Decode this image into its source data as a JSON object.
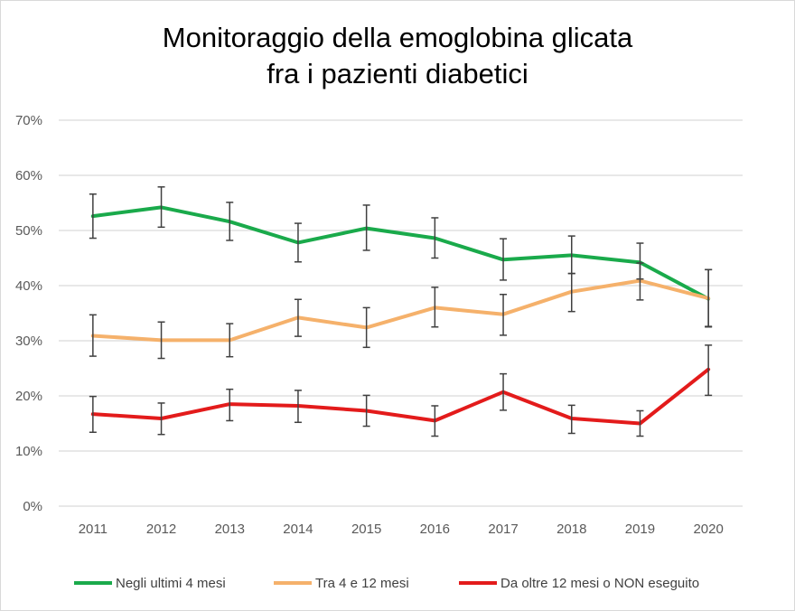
{
  "chart_data": {
    "type": "line",
    "title": "Monitoraggio della emoglobina glicata",
    "subtitle": "fra i pazienti diabetici",
    "categories": [
      "2011",
      "2012",
      "2013",
      "2014",
      "2015",
      "2016",
      "2017",
      "2018",
      "2019",
      "2020"
    ],
    "y_tick_labels": [
      "0%",
      "10%",
      "20%",
      "30%",
      "40%",
      "50%",
      "60%",
      "70%"
    ],
    "ylim": [
      0,
      70
    ],
    "grid": true,
    "legend_position": "bottom",
    "series": [
      {
        "name": "Negli ultimi 4 mesi",
        "color": "#1aaa4b",
        "values": [
          52.6,
          54.2,
          51.6,
          47.8,
          50.4,
          48.6,
          44.7,
          45.5,
          44.2,
          37.6
        ],
        "error_low": [
          48.6,
          50.6,
          48.2,
          44.3,
          46.4,
          45.0,
          41.0,
          42.2,
          41.2,
          32.6
        ],
        "error_high": [
          56.6,
          57.9,
          55.1,
          51.3,
          54.6,
          52.3,
          48.5,
          49.0,
          47.7,
          42.9
        ]
      },
      {
        "name": "Tra 4  e 12 mesi",
        "color": "#f5b16b",
        "values": [
          30.9,
          30.1,
          30.1,
          34.2,
          32.4,
          36.0,
          34.8,
          38.9,
          40.9,
          37.7
        ],
        "error_low": [
          27.2,
          26.8,
          27.1,
          30.8,
          28.8,
          32.5,
          31.0,
          35.3,
          37.4,
          32.5
        ],
        "error_high": [
          34.7,
          33.4,
          33.1,
          37.5,
          36.0,
          39.7,
          38.4,
          42.2,
          44.1,
          42.9
        ]
      },
      {
        "name": "Da oltre 12 mesi o NON eseguito",
        "color": "#e31b1b",
        "values": [
          16.7,
          15.9,
          18.5,
          18.2,
          17.3,
          15.5,
          20.7,
          15.9,
          15.0,
          24.8
        ],
        "error_low": [
          13.4,
          13.0,
          15.5,
          15.2,
          14.5,
          12.7,
          17.4,
          13.2,
          12.7,
          20.1
        ],
        "error_high": [
          19.9,
          18.7,
          21.2,
          21.0,
          20.1,
          18.2,
          24.0,
          18.3,
          17.3,
          29.2
        ]
      }
    ]
  }
}
